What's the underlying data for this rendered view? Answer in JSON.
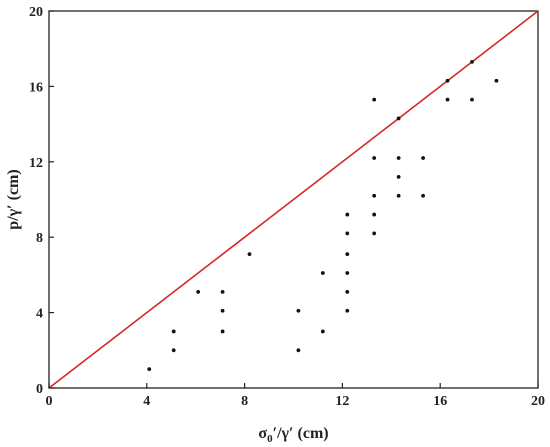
{
  "chart_data": {
    "type": "scatter",
    "title": "",
    "xlabel": "σ0′/γ′ (cm)",
    "xlabel_parts": {
      "main": "σ",
      "sub": "0",
      "rest": "′/γ′ (cm)"
    },
    "ylabel": "p/γ′ (cm)",
    "xlim": [
      0,
      20
    ],
    "ylim": [
      0,
      20
    ],
    "xticks": [
      0,
      4,
      8,
      12,
      16,
      20
    ],
    "yticks": [
      0,
      4,
      8,
      12,
      16,
      20
    ],
    "xtick_labels": [
      "0",
      "4",
      "8",
      "12",
      "16",
      "20"
    ],
    "ytick_labels": [
      "0",
      "4",
      "8",
      "12",
      "16",
      "20"
    ],
    "grid": false,
    "reference_line": {
      "from": [
        0,
        0
      ],
      "to": [
        20,
        20
      ],
      "color": "#d62728"
    },
    "point_color": "#111111",
    "points": [
      [
        4.1,
        1.0
      ],
      [
        5.1,
        2.0
      ],
      [
        5.1,
        3.0
      ],
      [
        6.1,
        5.1
      ],
      [
        7.1,
        3.0
      ],
      [
        7.1,
        4.1
      ],
      [
        7.1,
        5.1
      ],
      [
        8.2,
        7.1
      ],
      [
        10.2,
        2.0
      ],
      [
        10.2,
        4.1
      ],
      [
        11.2,
        3.0
      ],
      [
        11.2,
        6.1
      ],
      [
        12.2,
        4.1
      ],
      [
        12.2,
        5.1
      ],
      [
        12.2,
        6.1
      ],
      [
        12.2,
        7.1
      ],
      [
        12.2,
        8.2
      ],
      [
        12.2,
        9.2
      ],
      [
        13.3,
        8.2
      ],
      [
        13.3,
        9.2
      ],
      [
        13.3,
        10.2
      ],
      [
        13.3,
        12.2
      ],
      [
        13.3,
        15.3
      ],
      [
        14.3,
        10.2
      ],
      [
        14.3,
        11.2
      ],
      [
        14.3,
        12.2
      ],
      [
        14.3,
        14.3
      ],
      [
        15.3,
        10.2
      ],
      [
        15.3,
        12.2
      ],
      [
        16.3,
        15.3
      ],
      [
        16.3,
        16.3
      ],
      [
        17.3,
        15.3
      ],
      [
        17.3,
        17.3
      ],
      [
        18.3,
        16.3
      ]
    ]
  }
}
